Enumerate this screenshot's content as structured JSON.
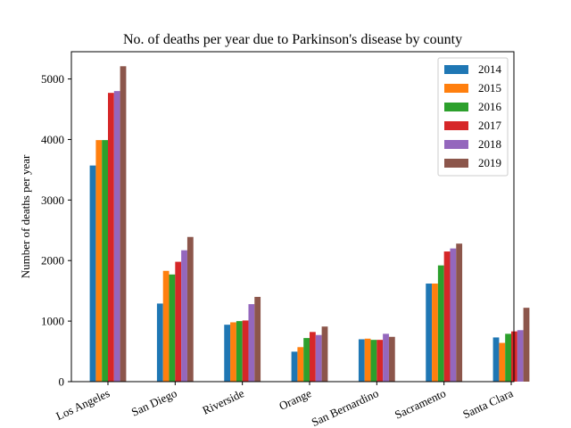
{
  "chart_data": {
    "type": "bar",
    "title": "No. of deaths per year due to Parkinson's disease by county",
    "xlabel": "",
    "ylabel": "Number of deaths per year",
    "ylim": [
      0,
      5450
    ],
    "yticks": [
      0,
      1000,
      2000,
      3000,
      4000,
      5000
    ],
    "grid": false,
    "legend_position": "top-right",
    "categories": [
      "Los Angeles",
      "San Diego",
      "Riverside",
      "Orange",
      "San Bernardino",
      "Sacramento",
      "Santa Clara"
    ],
    "series": [
      {
        "name": "2014",
        "color": "#1f77b4",
        "values": [
          3570,
          1290,
          940,
          495,
          700,
          1620,
          730
        ]
      },
      {
        "name": "2015",
        "color": "#ff7f0e",
        "values": [
          3990,
          1830,
          980,
          570,
          710,
          1620,
          640
        ]
      },
      {
        "name": "2016",
        "color": "#2ca02c",
        "values": [
          3990,
          1770,
          1000,
          720,
          690,
          1920,
          790
        ]
      },
      {
        "name": "2017",
        "color": "#d62728",
        "values": [
          4770,
          1980,
          1010,
          820,
          690,
          2150,
          830
        ]
      },
      {
        "name": "2018",
        "color": "#9467bd",
        "values": [
          4800,
          2170,
          1280,
          770,
          790,
          2200,
          850
        ]
      },
      {
        "name": "2019",
        "color": "#8c564b",
        "values": [
          5210,
          2390,
          1400,
          910,
          740,
          2280,
          1220
        ]
      }
    ]
  }
}
